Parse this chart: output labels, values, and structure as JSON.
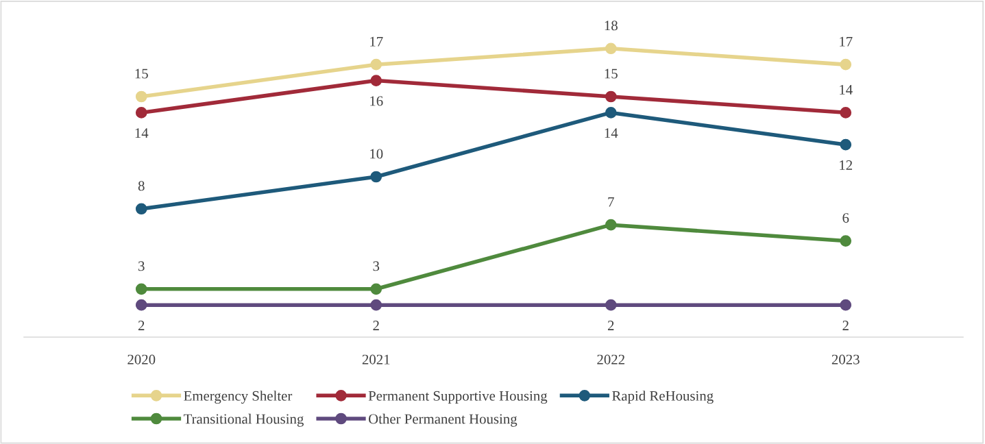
{
  "chart_data": {
    "type": "line",
    "categories": [
      "2020",
      "2021",
      "2022",
      "2023"
    ],
    "series": [
      {
        "name": "Emergency Shelter",
        "color": "#e6d48c",
        "values": [
          15,
          17,
          18,
          17
        ]
      },
      {
        "name": "Permanent Supportive Housing",
        "color": "#a12a39",
        "values": [
          14,
          16,
          15,
          14
        ]
      },
      {
        "name": "Rapid ReHousing",
        "color": "#1e5a7b",
        "values": [
          8,
          10,
          14,
          12
        ]
      },
      {
        "name": "Transitional Housing",
        "color": "#4f8a3d",
        "values": [
          3,
          3,
          7,
          6
        ]
      },
      {
        "name": "Other Permanent Housing",
        "color": "#5f4a7e",
        "values": [
          2,
          2,
          2,
          2
        ]
      }
    ],
    "tick_labels": "x",
    "data_labels": true,
    "grid": false,
    "legend": "bottom",
    "marker": "circle",
    "line_style": "solid"
  }
}
